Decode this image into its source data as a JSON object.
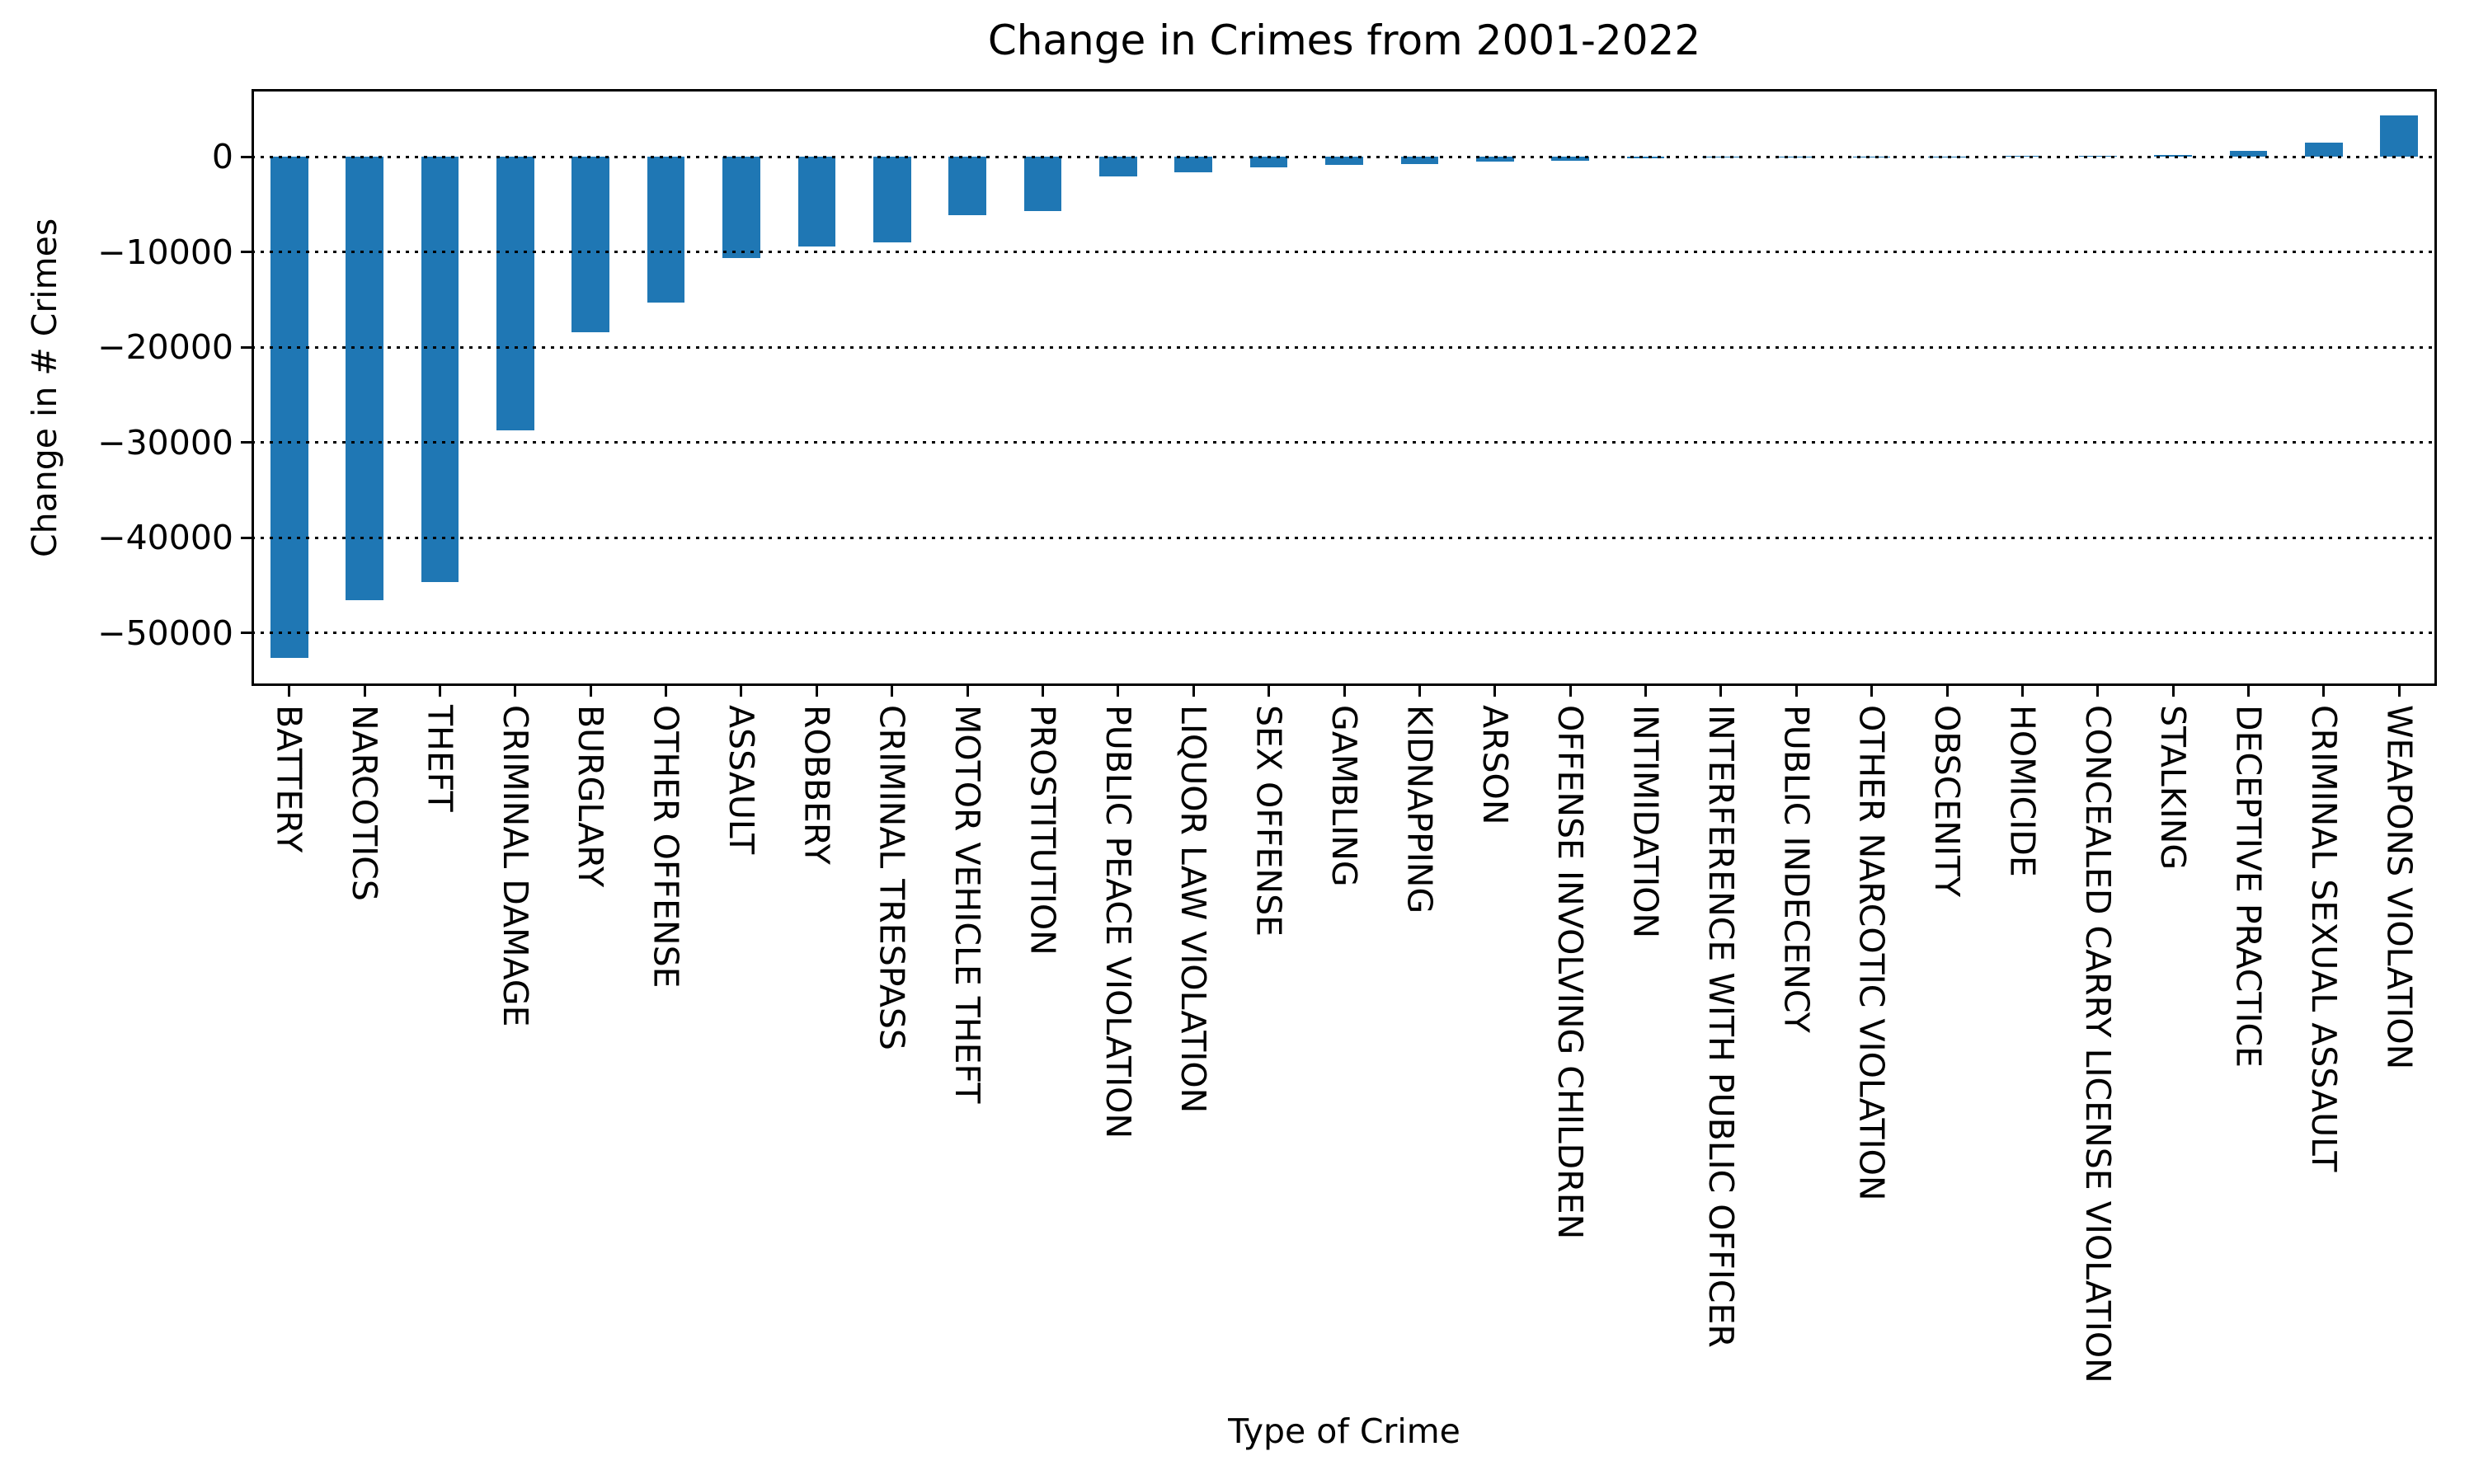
{
  "figure": {
    "background_color": "#ffffff",
    "text_color": "#000000",
    "accent_color": "#1f77b4"
  },
  "chart_data": {
    "type": "bar",
    "title": "Change in Crimes from 2001-2022",
    "xlabel": "Type of Crime",
    "ylabel": "Change in # Crimes",
    "bar_color": "#1f77b4",
    "grid": "horizontal dotted black lines at each y tick, drawn above bars",
    "legend_position": "none",
    "ylim": [
      -55540,
      7100
    ],
    "yticks": [
      {
        "label": "0",
        "value": 0
      },
      {
        "label": "−10000",
        "value": -10000
      },
      {
        "label": "−20000",
        "value": -20000
      },
      {
        "label": "−30000",
        "value": -30000
      },
      {
        "label": "−40000",
        "value": -40000
      },
      {
        "label": "−50000",
        "value": -50000
      }
    ],
    "categories": [
      "BATTERY",
      "NARCOTICS",
      "THEFT",
      "CRIMINAL DAMAGE",
      "BURGLARY",
      "OTHER OFFENSE",
      "ASSAULT",
      "ROBBERY",
      "CRIMINAL TRESPASS",
      "MOTOR VEHICLE THEFT",
      "PROSTITUTION",
      "PUBLIC PEACE VIOLATION",
      "LIQUOR LAW VIOLATION",
      "SEX OFFENSE",
      "GAMBLING",
      "KIDNAPPING",
      "ARSON",
      "OFFENSE INVOLVING CHILDREN",
      "INTIMIDATION",
      "INTERFERENCE WITH PUBLIC OFFICER",
      "PUBLIC INDECENCY",
      "OTHER NARCOTIC VIOLATION",
      "OBSCENITY",
      "HOMICIDE",
      "CONCEALED CARRY LICENSE VIOLATION",
      "STALKING",
      "DECEPTIVE PRACTICE",
      "CRIMINAL SEXUAL ASSAULT",
      "WEAPONS VIOLATION"
    ],
    "values": [
      -52600,
      -46500,
      -44600,
      -28700,
      -18400,
      -15300,
      -10600,
      -9400,
      -9000,
      -6100,
      -5700,
      -2100,
      -1600,
      -1100,
      -900,
      -750,
      -500,
      -430,
      -160,
      -60,
      -15,
      10,
      30,
      60,
      130,
      180,
      600,
      1450,
      4300
    ]
  }
}
